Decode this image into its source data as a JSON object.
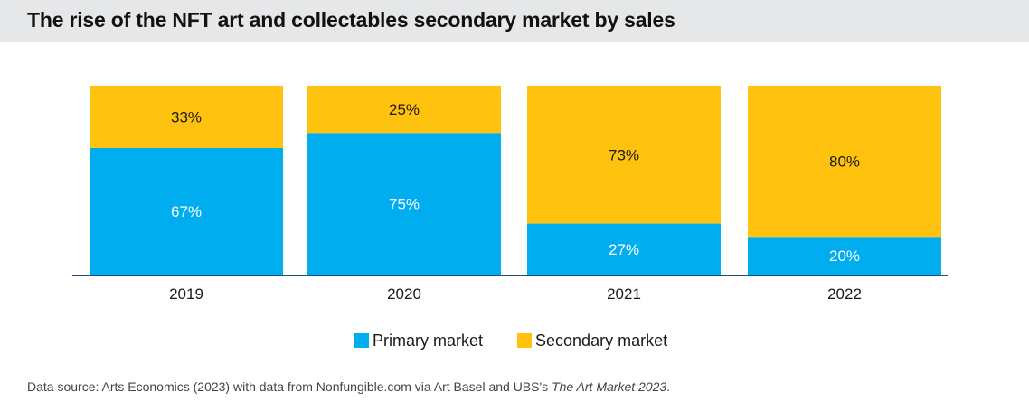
{
  "header": {
    "title": "The rise of the NFT art and collectables secondary market by sales"
  },
  "colors": {
    "primary": "#00aeef",
    "secondary": "#ffc20e",
    "axis": "#1f4e79",
    "primary_text": "#ffffff",
    "secondary_text": "#1a1a1a"
  },
  "chart_data": {
    "type": "bar",
    "stacked": true,
    "categories": [
      "2019",
      "2020",
      "2021",
      "2022"
    ],
    "series": [
      {
        "name": "Primary market",
        "values": [
          67,
          75,
          27,
          20
        ],
        "labels": [
          "67%",
          "75%",
          "27%",
          "20%"
        ]
      },
      {
        "name": "Secondary market",
        "values": [
          33,
          25,
          73,
          80
        ],
        "labels": [
          "33%",
          "25%",
          "73%",
          "80%"
        ]
      }
    ],
    "ylim": [
      0,
      100
    ],
    "grid": false,
    "legend_position": "bottom"
  },
  "legend": {
    "primary_label": "Primary market",
    "secondary_label": "Secondary market"
  },
  "footer": {
    "source_prefix": "Data source: Arts Economics (2023) with data from Nonfungible.com via Art Basel and UBS's ",
    "source_italic": "The Art Market 2023",
    "source_suffix": "."
  }
}
